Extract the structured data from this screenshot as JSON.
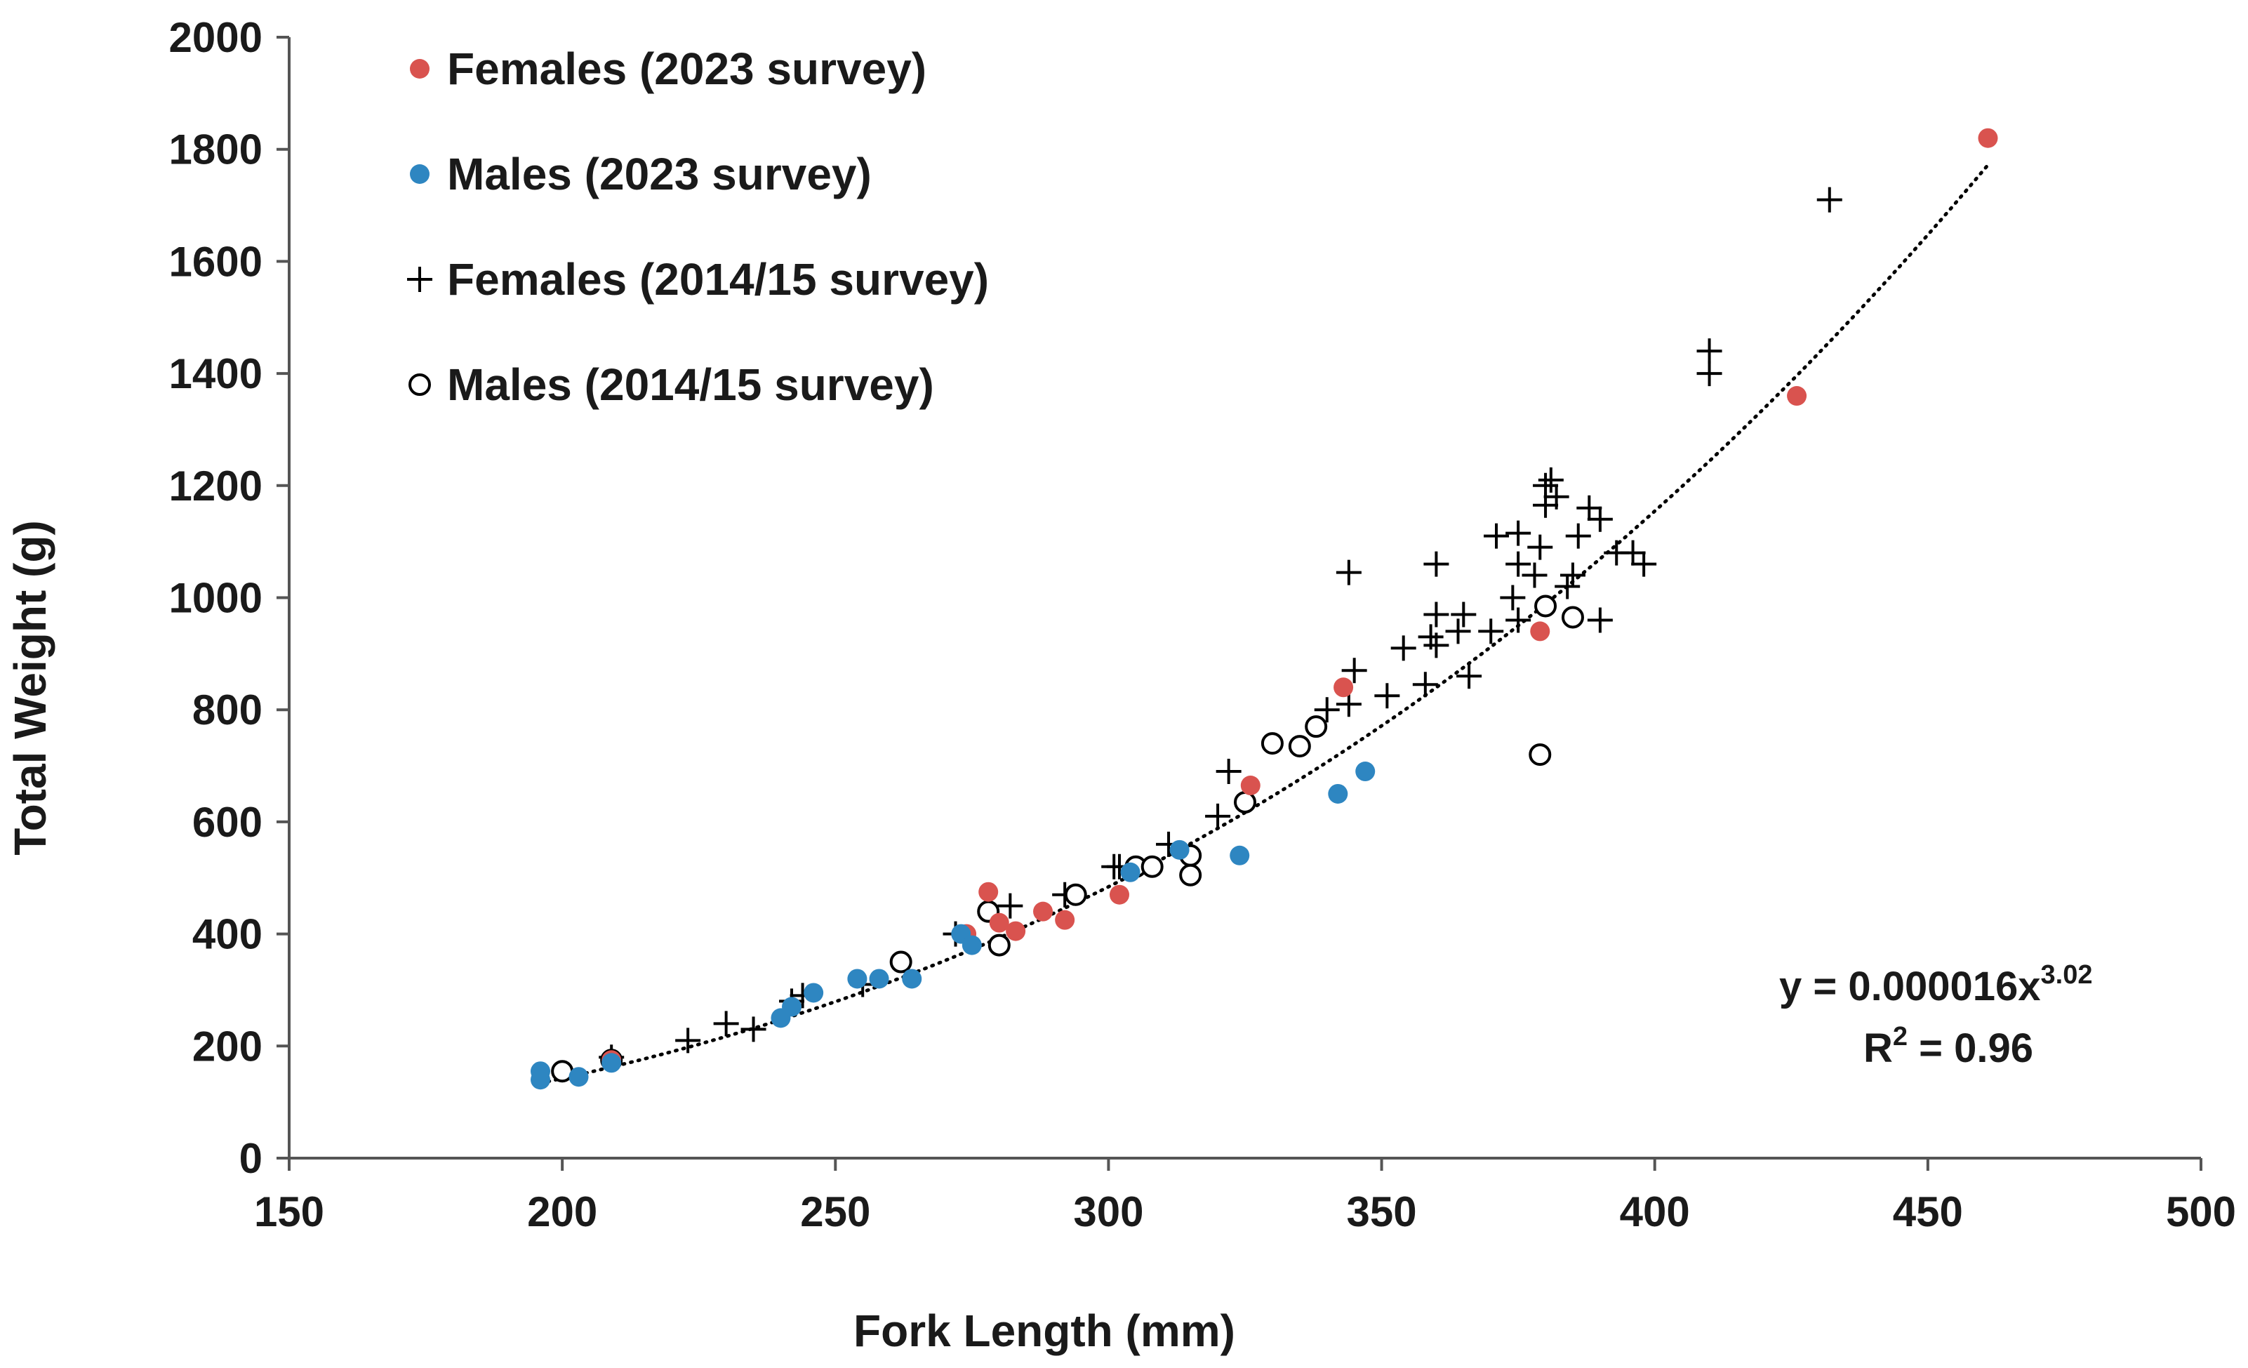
{
  "chart_data": {
    "type": "scatter",
    "title": "",
    "xlabel": "Fork Length (mm)",
    "ylabel": "Total Weight (g)",
    "xlim": [
      150,
      500
    ],
    "ylim": [
      0,
      2000
    ],
    "x_ticks": [
      150,
      200,
      250,
      300,
      350,
      400,
      450,
      500
    ],
    "y_ticks": [
      0,
      200,
      400,
      600,
      800,
      1000,
      1200,
      1400,
      1600,
      1800,
      2000
    ],
    "grid": false,
    "legend_position": "top-left",
    "series": [
      {
        "name": "Females (2023 survey)",
        "marker": "filled-circle",
        "color": "#d9534f",
        "points": [
          [
            209,
            175
          ],
          [
            274,
            400
          ],
          [
            278,
            475
          ],
          [
            280,
            420
          ],
          [
            283,
            405
          ],
          [
            288,
            440
          ],
          [
            292,
            425
          ],
          [
            302,
            470
          ],
          [
            326,
            665
          ],
          [
            343,
            840
          ],
          [
            379,
            940
          ],
          [
            426,
            1360
          ],
          [
            461,
            1820
          ]
        ]
      },
      {
        "name": "Males (2023 survey)",
        "marker": "filled-circle",
        "color": "#2e86c1",
        "points": [
          [
            196,
            155
          ],
          [
            196,
            140
          ],
          [
            203,
            145
          ],
          [
            209,
            170
          ],
          [
            240,
            250
          ],
          [
            242,
            270
          ],
          [
            246,
            295
          ],
          [
            254,
            320
          ],
          [
            258,
            320
          ],
          [
            264,
            320
          ],
          [
            273,
            400
          ],
          [
            275,
            380
          ],
          [
            304,
            510
          ],
          [
            313,
            550
          ],
          [
            324,
            540
          ],
          [
            342,
            650
          ],
          [
            347,
            690
          ]
        ]
      },
      {
        "name": "Females (2014/15 survey)",
        "marker": "plus",
        "color": "#000000",
        "points": [
          [
            209,
            180
          ],
          [
            223,
            210
          ],
          [
            230,
            240
          ],
          [
            235,
            230
          ],
          [
            242,
            280
          ],
          [
            244,
            290
          ],
          [
            255,
            310
          ],
          [
            272,
            400
          ],
          [
            282,
            450
          ],
          [
            292,
            470
          ],
          [
            301,
            520
          ],
          [
            302,
            520
          ],
          [
            311,
            560
          ],
          [
            320,
            610
          ],
          [
            322,
            690
          ],
          [
            340,
            800
          ],
          [
            344,
            810
          ],
          [
            345,
            870
          ],
          [
            344,
            1045
          ],
          [
            351,
            825
          ],
          [
            354,
            910
          ],
          [
            358,
            845
          ],
          [
            359,
            930
          ],
          [
            360,
            915
          ],
          [
            360,
            970
          ],
          [
            360,
            1060
          ],
          [
            364,
            940
          ],
          [
            365,
            970
          ],
          [
            366,
            860
          ],
          [
            370,
            940
          ],
          [
            371,
            1110
          ],
          [
            374,
            1000
          ],
          [
            375,
            960
          ],
          [
            375,
            1060
          ],
          [
            375,
            1115
          ],
          [
            378,
            1040
          ],
          [
            379,
            1090
          ],
          [
            380,
            1165
          ],
          [
            380,
            1200
          ],
          [
            381,
            1210
          ],
          [
            382,
            1180
          ],
          [
            384,
            1020
          ],
          [
            385,
            1040
          ],
          [
            386,
            1110
          ],
          [
            388,
            1160
          ],
          [
            390,
            1140
          ],
          [
            390,
            960
          ],
          [
            393,
            1080
          ],
          [
            396,
            1080
          ],
          [
            398,
            1060
          ],
          [
            410,
            1440
          ],
          [
            410,
            1400
          ],
          [
            432,
            1710
          ]
        ]
      },
      {
        "name": "Males (2014/15 survey)",
        "marker": "open-circle",
        "color": "#000000",
        "points": [
          [
            200,
            155
          ],
          [
            209,
            175
          ],
          [
            262,
            350
          ],
          [
            278,
            440
          ],
          [
            280,
            380
          ],
          [
            294,
            470
          ],
          [
            305,
            520
          ],
          [
            308,
            520
          ],
          [
            315,
            540
          ],
          [
            315,
            505
          ],
          [
            325,
            635
          ],
          [
            330,
            740
          ],
          [
            335,
            735
          ],
          [
            338,
            770
          ],
          [
            379,
            720
          ],
          [
            380,
            985
          ],
          [
            385,
            965
          ]
        ]
      }
    ],
    "trendline": {
      "type": "power",
      "coefficient": 1.6e-05,
      "exponent": 3.02,
      "x_range": [
        196,
        461
      ],
      "style": "dotted"
    },
    "equation_label": "y = 0.000016x",
    "equation_exponent": "3.02",
    "r2_prefix": "R",
    "r2_sup": "2",
    "r2_suffix": " = 0.96"
  }
}
